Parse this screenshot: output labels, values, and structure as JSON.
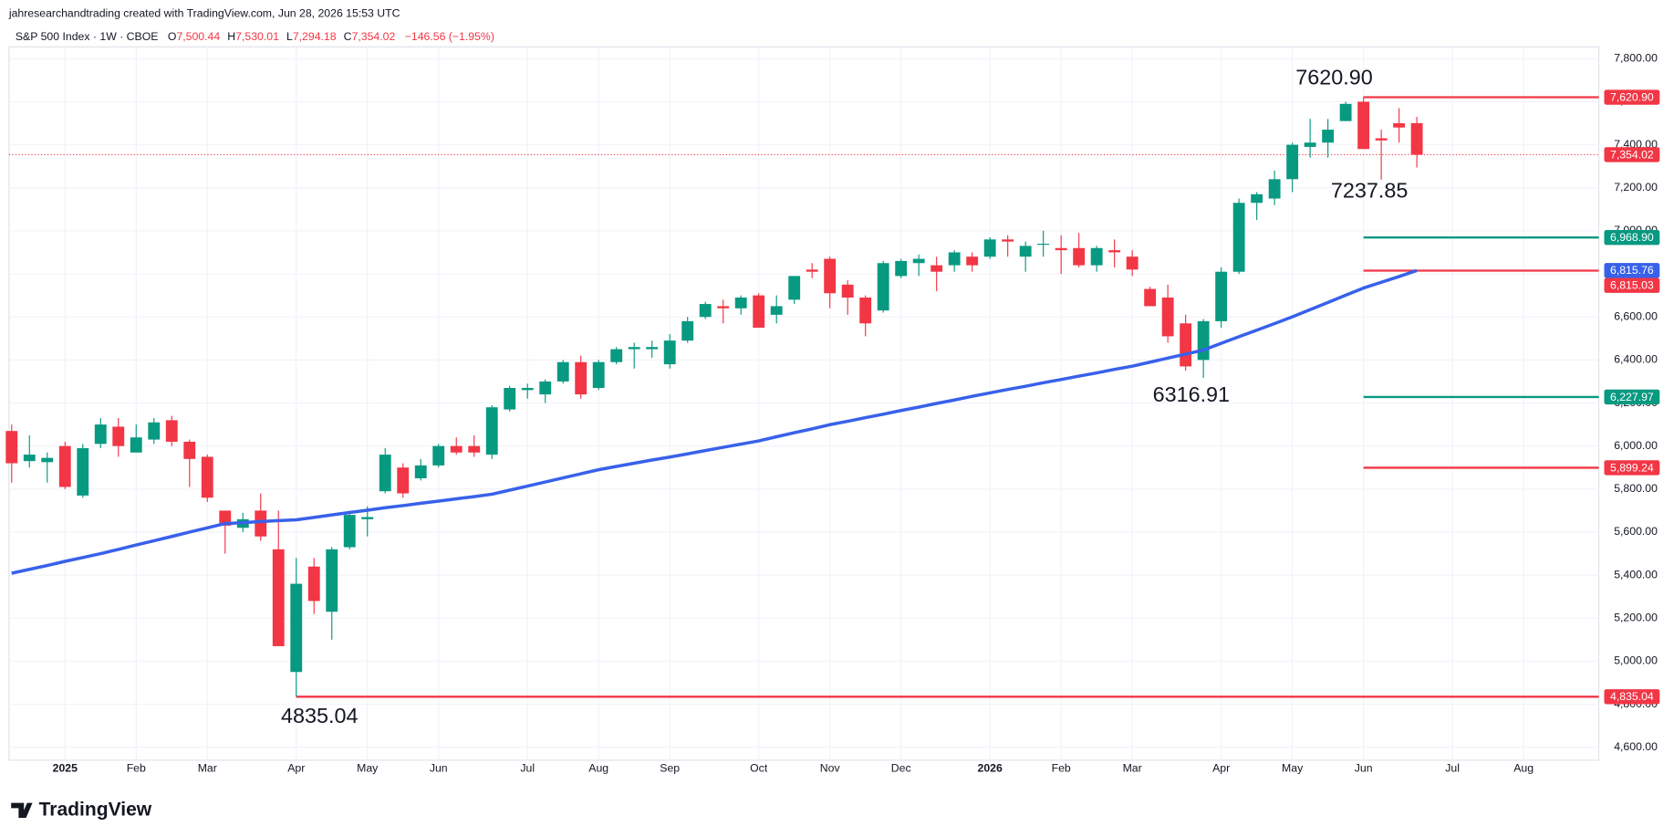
{
  "header": {
    "attribution": "jahresearchandtrading created with TradingView.com, Jun 28, 2026 15:53 UTC",
    "symbol": "S&P 500 Index · 1W · CBOE",
    "o": "O",
    "o_value": "7,500.44",
    "h": "H",
    "h_value": "7,530.01",
    "l": "L",
    "l_value": "7,294.18",
    "c": "C",
    "c_value": "7,354.02",
    "change": "−146.56 (−1.95%)"
  },
  "footer": {
    "brand": "TradingView"
  },
  "chart_data": {
    "type": "candlestick",
    "up_color": "#089981",
    "down_color": "#f23645",
    "ma_color": "#3861ea",
    "grid": true,
    "categories": [
      null,
      null,
      null,
      "2025",
      null,
      null,
      null,
      "Feb",
      null,
      null,
      null,
      "Mar",
      null,
      null,
      null,
      null,
      "Apr",
      null,
      null,
      null,
      "May",
      null,
      null,
      null,
      "Jun",
      null,
      null,
      null,
      null,
      "Jul",
      null,
      null,
      null,
      "Aug",
      null,
      null,
      null,
      "Sep",
      null,
      null,
      null,
      null,
      "Oct",
      null,
      null,
      null,
      "Nov",
      null,
      null,
      null,
      "Dec",
      null,
      null,
      null,
      null,
      "2026",
      null,
      null,
      null,
      "Feb",
      null,
      null,
      null,
      "Mar",
      null,
      null,
      null,
      null,
      "Apr",
      null,
      null,
      null,
      "May",
      null,
      null,
      null,
      "Jun",
      null,
      null,
      null,
      null,
      "Jul",
      null,
      null,
      null,
      "Aug",
      null,
      null,
      null
    ],
    "bold_categories": [
      "2025",
      "2026"
    ],
    "open": [
      6070,
      5930,
      5925,
      6000,
      5770,
      6010,
      6090,
      5970,
      6030,
      6120,
      6020,
      5950,
      5700,
      5620,
      5700,
      5520,
      4950,
      5440,
      5230,
      5530,
      5660,
      5790,
      5900,
      5850,
      5910,
      6000,
      6000,
      5960,
      6170,
      6260,
      6240,
      6300,
      6390,
      6270,
      6390,
      6450,
      6450,
      6380,
      6490,
      6600,
      6650,
      6640,
      6700,
      6610,
      6680,
      6820,
      6870,
      6750,
      6690,
      6630,
      6790,
      6850,
      6840,
      6840,
      6880,
      6880,
      6960,
      6880,
      6940,
      6920,
      6920,
      6840,
      6910,
      6880,
      6730,
      6690,
      6570,
      6400,
      6580,
      6810,
      7130,
      7150,
      7240,
      7390,
      7410,
      7510,
      7600,
      7430,
      7500,
      7500.44,
      null,
      null,
      null,
      null,
      null,
      null,
      null,
      null,
      null
    ],
    "high": [
      6100,
      6050,
      5970,
      6020,
      6010,
      6130,
      6130,
      6100,
      6130,
      6140,
      6030,
      5960,
      5700,
      5690,
      5780,
      5700,
      5480,
      5480,
      5530,
      5700,
      5720,
      5990,
      5920,
      5940,
      6010,
      6040,
      6050,
      6190,
      6280,
      6290,
      6310,
      6400,
      6420,
      6400,
      6460,
      6480,
      6490,
      6520,
      6600,
      6670,
      6680,
      6700,
      6710,
      6700,
      6790,
      6850,
      6880,
      6770,
      6700,
      6860,
      6870,
      6890,
      6880,
      6910,
      6900,
      6970,
      6980,
      6950,
      7000,
      6980,
      6990,
      6930,
      6960,
      6910,
      6740,
      6750,
      6610,
      6590,
      6830,
      7150,
      7180,
      7280,
      7410,
      7520,
      7520,
      7600,
      7620.9,
      7470,
      7570,
      7530.01,
      null,
      null,
      null,
      null,
      null,
      null,
      null,
      null,
      null
    ],
    "low": [
      5830,
      5900,
      5830,
      5800,
      5760,
      5990,
      5950,
      5970,
      6010,
      6000,
      5810,
      5740,
      5500,
      5600,
      5560,
      5070,
      4835.04,
      5220,
      5100,
      5520,
      5580,
      5780,
      5760,
      5840,
      5900,
      5960,
      5950,
      5940,
      6160,
      6220,
      6200,
      6290,
      6220,
      6260,
      6380,
      6360,
      6410,
      6360,
      6480,
      6590,
      6570,
      6610,
      6550,
      6570,
      6660,
      6780,
      6640,
      6610,
      6510,
      6620,
      6780,
      6790,
      6720,
      6810,
      6810,
      6870,
      6880,
      6810,
      6880,
      6800,
      6830,
      6810,
      6830,
      6790,
      6650,
      6480,
      6350,
      6316.91,
      6550,
      6800,
      7050,
      7120,
      7180,
      7340,
      7340,
      7510,
      7380,
      7237.85,
      7410,
      7294.18,
      null,
      null,
      null,
      null,
      null,
      null,
      null,
      null,
      null
    ],
    "close": [
      5920,
      5960,
      5945,
      5810,
      5990,
      6100,
      6000,
      6040,
      6110,
      6020,
      5940,
      5760,
      5630,
      5660,
      5580,
      5070,
      5360,
      5280,
      5520,
      5680,
      5670,
      5960,
      5780,
      5910,
      6000,
      5970,
      5970,
      6180,
      6270,
      6270,
      6300,
      6390,
      6240,
      6390,
      6450,
      6460,
      6460,
      6490,
      6580,
      6660,
      6640,
      6690,
      6550,
      6650,
      6790,
      6810,
      6710,
      6690,
      6570,
      6850,
      6860,
      6870,
      6810,
      6900,
      6840,
      6960,
      6950,
      6930,
      6940,
      6910,
      6840,
      6920,
      6900,
      6820,
      6650,
      6510,
      6370,
      6580,
      6810,
      7130,
      7170,
      7240,
      7400,
      7410,
      7470,
      7590,
      7380,
      7420,
      7480,
      7354.02,
      null,
      null,
      null,
      null,
      null,
      null,
      null,
      null,
      null
    ],
    "ma": [
      5409,
      5427,
      5445,
      5464,
      5482,
      5500,
      5520,
      5540,
      5560,
      5580,
      5600,
      5620,
      5640,
      5644,
      5649,
      5653,
      5657,
      5668,
      5680,
      5691,
      5702,
      5713,
      5723,
      5734,
      5744,
      5755,
      5765,
      5776,
      5795,
      5814,
      5833,
      5852,
      5871,
      5890,
      5905,
      5920,
      5935,
      5949,
      5964,
      5979,
      5994,
      6009,
      6024,
      6043,
      6062,
      6080,
      6099,
      6115,
      6132,
      6148,
      6165,
      6181,
      6198,
      6214,
      6231,
      6247,
      6263,
      6278,
      6294,
      6309,
      6325,
      6340,
      6356,
      6371,
      6390,
      6409,
      6427,
      6446,
      6477,
      6508,
      6538,
      6569,
      6600,
      6634,
      6667,
      6701,
      6734,
      6761,
      6788,
      6815.76,
      null,
      null,
      null,
      null,
      null,
      null,
      null,
      null,
      null
    ],
    "ma_label": "6,815.76",
    "close_label": "7,354.02",
    "levels": [
      {
        "value": 7620.9,
        "label": "7,620.90",
        "color": "#f23645",
        "start": 76
      },
      {
        "value": 6968.9,
        "label": "6,968.90",
        "color": "#089981",
        "start": 76
      },
      {
        "value": 6815.03,
        "label": "6,815.03",
        "color": "#f23645",
        "start": 76
      },
      {
        "value": 6227.97,
        "label": "6,227.97",
        "color": "#089981",
        "start": 76
      },
      {
        "value": 5899.24,
        "label": "5,899.24",
        "color": "#f23645",
        "start": 76
      },
      {
        "value": 4835.04,
        "label": "4,835.04",
        "color": "#f23645",
        "start": 16
      }
    ],
    "annotations": [
      "7620.90",
      "7237.85",
      "6316.91",
      "4835.04"
    ],
    "ylim": [
      4540,
      7835
    ],
    "yticks": [
      {
        "value": 4600,
        "label": "4,600.00"
      },
      {
        "value": 4800,
        "label": "4,800.00"
      },
      {
        "value": 5000,
        "label": "5,000.00"
      },
      {
        "value": 5200,
        "label": "5,200.00"
      },
      {
        "value": 5400,
        "label": "5,400.00"
      },
      {
        "value": 5600,
        "label": "5,600.00"
      },
      {
        "value": 5800,
        "label": "5,800.00"
      },
      {
        "value": 6000,
        "label": "6,000.00"
      },
      {
        "value": 6200,
        "label": "6,200.00"
      },
      {
        "value": 6400,
        "label": "6,400.00"
      },
      {
        "value": 6600,
        "label": "6,600.00"
      },
      {
        "value": 6800,
        "label": "6,800.00"
      },
      {
        "value": 7000,
        "label": "7,000.00"
      },
      {
        "value": 7200,
        "label": "7,200.00"
      },
      {
        "value": 7400,
        "label": "7,400.00"
      },
      {
        "value": 7600,
        "label": "7,600.00"
      },
      {
        "value": 7800,
        "label": "7,800.00"
      }
    ]
  }
}
